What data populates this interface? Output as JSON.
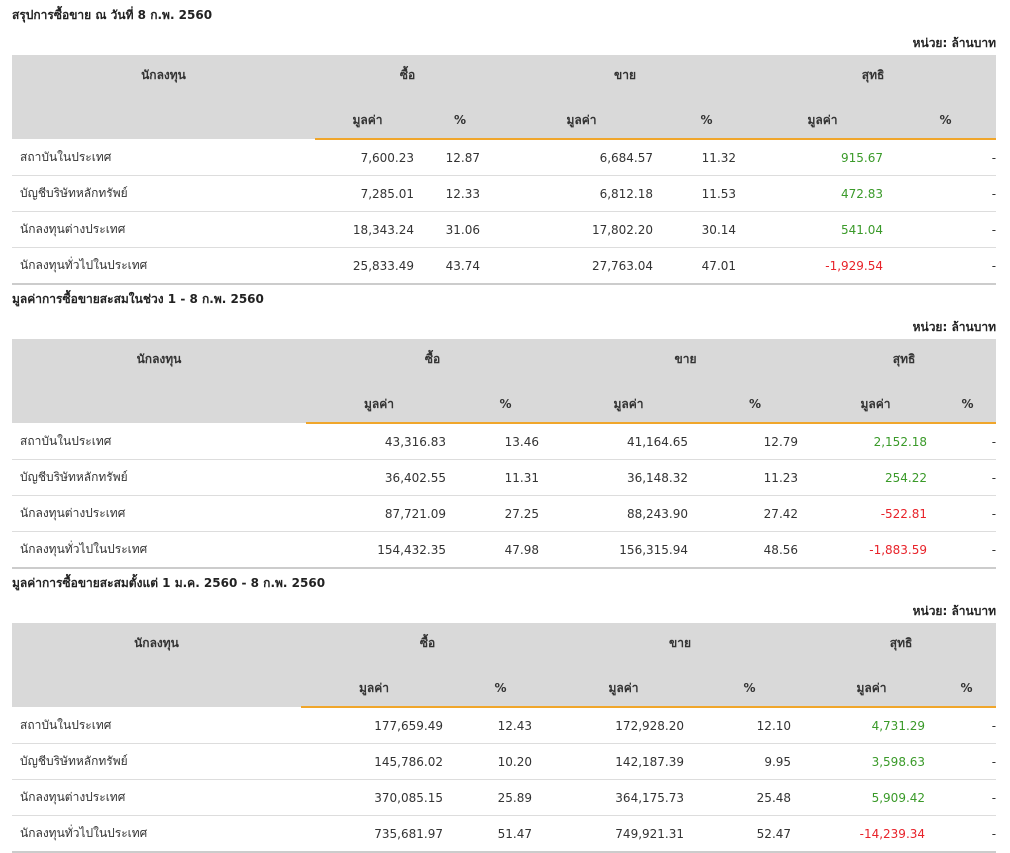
{
  "sections": [
    {
      "title": "สรุปการซื้อขาย ณ วันที่ 8 ก.พ. 2560",
      "unit": "หน่วย: ล้านบาท",
      "headers": {
        "investor": "นักลงทุน",
        "buy": "ซื้อ",
        "sell": "ขาย",
        "net": "สุทธิ",
        "value": "มูลค่า",
        "percent": "%"
      },
      "rows": [
        {
          "investor": "สถาบันในประเทศ",
          "buy_value": "7,600.23",
          "buy_pct": "12.87",
          "sell_value": "6,684.57",
          "sell_pct": "11.32",
          "net_value": "915.67",
          "net_pct": "-",
          "net_sign": "pos"
        },
        {
          "investor": "บัญชีบริษัทหลักทรัพย์",
          "buy_value": "7,285.01",
          "buy_pct": "12.33",
          "sell_value": "6,812.18",
          "sell_pct": "11.53",
          "net_value": "472.83",
          "net_pct": "-",
          "net_sign": "pos"
        },
        {
          "investor": "นักลงทุนต่างประเทศ",
          "buy_value": "18,343.24",
          "buy_pct": "31.06",
          "sell_value": "17,802.20",
          "sell_pct": "30.14",
          "net_value": "541.04",
          "net_pct": "-",
          "net_sign": "pos"
        },
        {
          "investor": "นักลงทุนทั่วไปในประเทศ",
          "buy_value": "25,833.49",
          "buy_pct": "43.74",
          "sell_value": "27,763.04",
          "sell_pct": "47.01",
          "net_value": "-1,929.54",
          "net_pct": "-",
          "net_sign": "neg"
        }
      ]
    },
    {
      "title": "มูลค่าการซื้อขายสะสมในช่วง 1 - 8 ก.พ. 2560",
      "unit": "หน่วย: ล้านบาท",
      "headers": {
        "investor": "นักลงทุน",
        "buy": "ซื้อ",
        "sell": "ขาย",
        "net": "สุทธิ",
        "value": "มูลค่า",
        "percent": "%"
      },
      "rows": [
        {
          "investor": "สถาบันในประเทศ",
          "buy_value": "43,316.83",
          "buy_pct": "13.46",
          "sell_value": "41,164.65",
          "sell_pct": "12.79",
          "net_value": "2,152.18",
          "net_pct": "-",
          "net_sign": "pos"
        },
        {
          "investor": "บัญชีบริษัทหลักทรัพย์",
          "buy_value": "36,402.55",
          "buy_pct": "11.31",
          "sell_value": "36,148.32",
          "sell_pct": "11.23",
          "net_value": "254.22",
          "net_pct": "-",
          "net_sign": "pos"
        },
        {
          "investor": "นักลงทุนต่างประเทศ",
          "buy_value": "87,721.09",
          "buy_pct": "27.25",
          "sell_value": "88,243.90",
          "sell_pct": "27.42",
          "net_value": "-522.81",
          "net_pct": "-",
          "net_sign": "neg"
        },
        {
          "investor": "นักลงทุนทั่วไปในประเทศ",
          "buy_value": "154,432.35",
          "buy_pct": "47.98",
          "sell_value": "156,315.94",
          "sell_pct": "48.56",
          "net_value": "-1,883.59",
          "net_pct": "-",
          "net_sign": "neg"
        }
      ]
    },
    {
      "title": "มูลค่าการซื้อขายสะสมตั้งแต่ 1 ม.ค. 2560 - 8 ก.พ. 2560",
      "unit": "หน่วย: ล้านบาท",
      "headers": {
        "investor": "นักลงทุน",
        "buy": "ซื้อ",
        "sell": "ขาย",
        "net": "สุทธิ",
        "value": "มูลค่า",
        "percent": "%"
      },
      "rows": [
        {
          "investor": "สถาบันในประเทศ",
          "buy_value": "177,659.49",
          "buy_pct": "12.43",
          "sell_value": "172,928.20",
          "sell_pct": "12.10",
          "net_value": "4,731.29",
          "net_pct": "-",
          "net_sign": "pos"
        },
        {
          "investor": "บัญชีบริษัทหลักทรัพย์",
          "buy_value": "145,786.02",
          "buy_pct": "10.20",
          "sell_value": "142,187.39",
          "sell_pct": "9.95",
          "net_value": "3,598.63",
          "net_pct": "-",
          "net_sign": "pos"
        },
        {
          "investor": "นักลงทุนต่างประเทศ",
          "buy_value": "370,085.15",
          "buy_pct": "25.89",
          "sell_value": "364,175.73",
          "sell_pct": "25.48",
          "net_value": "5,909.42",
          "net_pct": "-",
          "net_sign": "pos"
        },
        {
          "investor": "นักลงทุนทั่วไปในประเทศ",
          "buy_value": "735,681.97",
          "buy_pct": "51.47",
          "sell_value": "749,921.31",
          "sell_pct": "52.47",
          "net_value": "-14,239.34",
          "net_pct": "-",
          "net_sign": "neg"
        }
      ]
    }
  ],
  "colors": {
    "positive": "#3a9a29",
    "negative": "#e8232a",
    "accent": "#f0a62b",
    "header_bg": "#d9d9d9"
  }
}
